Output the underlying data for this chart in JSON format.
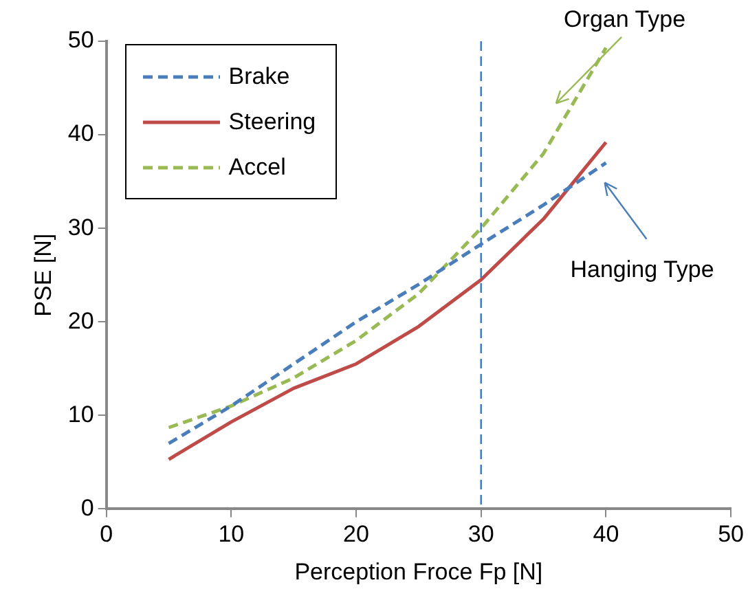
{
  "chart_data": {
    "type": "line",
    "xlabel": "Perception Froce Fp [N]",
    "ylabel": "PSE [N]",
    "x": [
      5,
      10,
      15,
      20,
      25,
      30,
      35,
      40
    ],
    "series": [
      {
        "name": "Brake",
        "color": "#4a7ebb",
        "line_style": "dashed",
        "values": [
          7,
          11,
          15.5,
          20,
          24,
          28.3,
          32.5,
          37
        ]
      },
      {
        "name": "Steering",
        "color": "#be4b48",
        "line_style": "solid",
        "values": [
          5.3,
          9.3,
          12.9,
          15.5,
          19.5,
          24.5,
          31,
          39.2
        ]
      },
      {
        "name": "Accel",
        "color": "#98b954",
        "line_style": "dashed",
        "values": [
          8.7,
          11,
          14,
          18,
          23,
          30,
          38,
          49.3
        ]
      }
    ],
    "xlim": [
      0,
      50
    ],
    "xticks": [
      0,
      10,
      20,
      30,
      40,
      50
    ],
    "ylim": [
      0,
      50
    ],
    "yticks": [
      0,
      10,
      20,
      30,
      40,
      50
    ],
    "ref_lines": [
      {
        "axis": "x",
        "value": 30,
        "color": "#4a7ebb",
        "line_style": "dashed"
      }
    ],
    "annotations": [
      "Organ Type",
      "Hanging Type"
    ],
    "grid": false,
    "legend": "top left",
    "marker": "none"
  }
}
